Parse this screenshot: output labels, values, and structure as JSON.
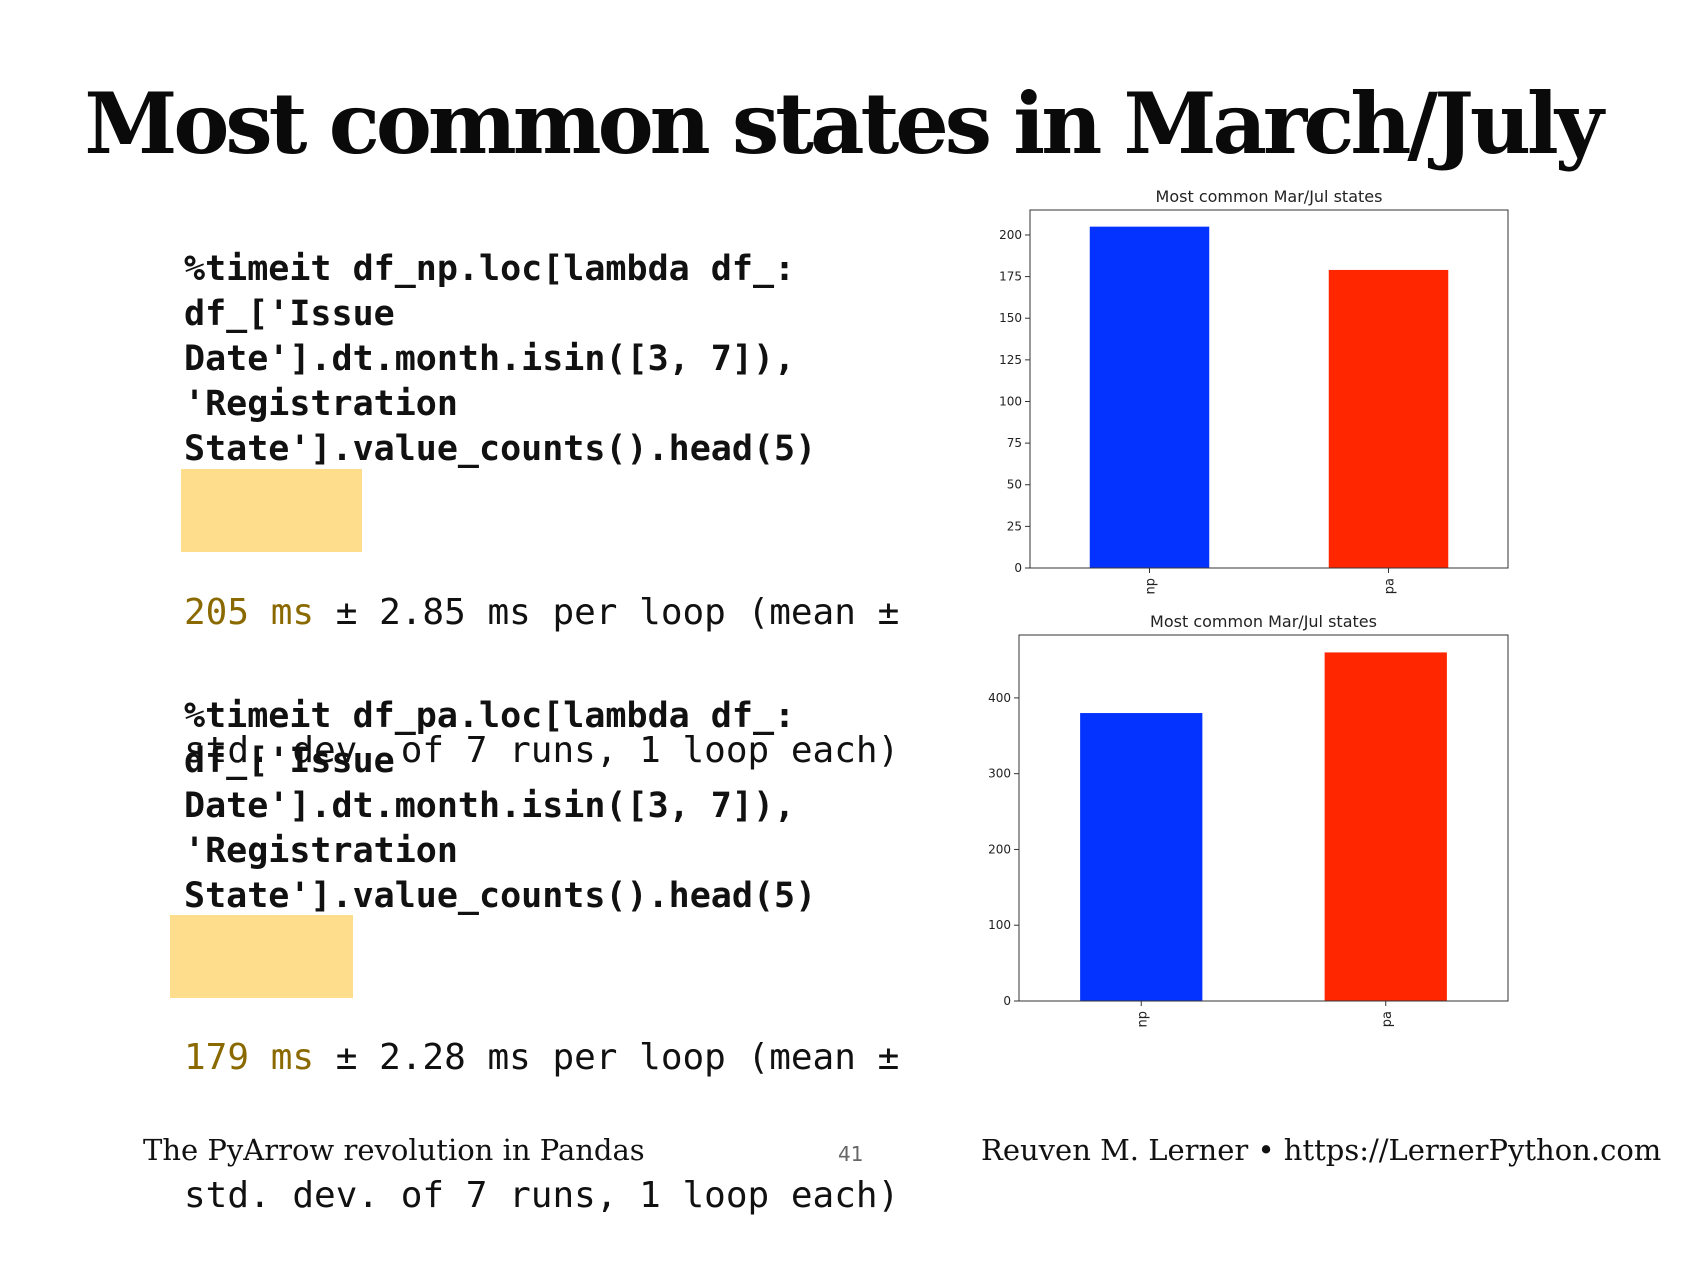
{
  "slide": {
    "title": "Most common states in March/July",
    "footer_left": "The PyArrow revolution in Pandas",
    "page_number": "41",
    "footer_right": "Reuven M. Lerner • https://LernerPython.com"
  },
  "blocks": [
    {
      "code_lines": [
        "%timeit df_np.loc[lambda df_:",
        "df_['Issue",
        "Date'].dt.month.isin([3, 7]),",
        "'Registration",
        "State'].value_counts().head(5)"
      ],
      "result_highlight": "205 ms",
      "result_rest": " ± 2.85 ms per loop (mean ±",
      "result_line2": "std. dev. of 7 runs, 1 loop each)"
    },
    {
      "code_lines": [
        "%timeit df_pa.loc[lambda df_:",
        "df_['Issue",
        "Date'].dt.month.isin([3, 7]),",
        "'Registration",
        "State'].value_counts().head(5)"
      ],
      "result_highlight": "179 ms",
      "result_rest": " ± 2.28 ms per loop (mean ±",
      "result_line2": "std. dev. of 7 runs, 1 loop each)"
    }
  ],
  "colors": {
    "bar_np": "#0433ff",
    "bar_pa": "#ff2600",
    "highlight": "#fedd8c"
  },
  "chart_data": [
    {
      "type": "bar",
      "title": "Most common Mar/Jul states",
      "categories": [
        "np",
        "pa"
      ],
      "values": [
        205,
        179
      ],
      "ylim": [
        0,
        215
      ],
      "yticks": [
        0,
        25,
        50,
        75,
        100,
        125,
        150,
        175,
        200
      ],
      "xlabel": "",
      "ylabel": ""
    },
    {
      "type": "bar",
      "title": "Most common Mar/Jul states",
      "categories": [
        "np",
        "pa"
      ],
      "values": [
        380,
        460
      ],
      "ylim": [
        0,
        483
      ],
      "yticks": [
        0,
        100,
        200,
        300,
        400
      ],
      "xlabel": "",
      "ylabel": ""
    }
  ]
}
